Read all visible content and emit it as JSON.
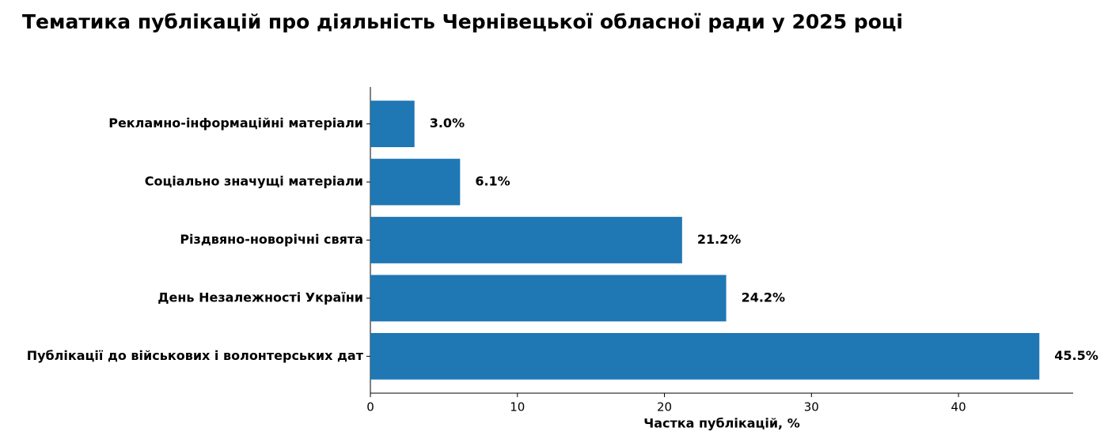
{
  "chart_data": {
    "type": "barh",
    "title": "Тематика публікацій про діяльність Чернівецької обласної ради у 2025 році",
    "x_label": "Частка публікацій, %",
    "categories": [
      "Рекламно-інформаційні матеріали",
      "Соціально значущі матеріали",
      "Різдвяно-новорічні свята",
      "День Незалежності України",
      "Публікації до військових і волонтерських дат"
    ],
    "values": [
      3.0,
      6.1,
      21.2,
      24.2,
      45.5
    ],
    "value_labels": [
      "3.0%",
      "6.1%",
      "21.2%",
      "24.2%",
      "45.5%"
    ],
    "color": "#1f77b4",
    "xlim": [
      0,
      47.8
    ],
    "xticks": [
      0,
      10,
      20,
      30,
      40
    ],
    "grid": false
  }
}
